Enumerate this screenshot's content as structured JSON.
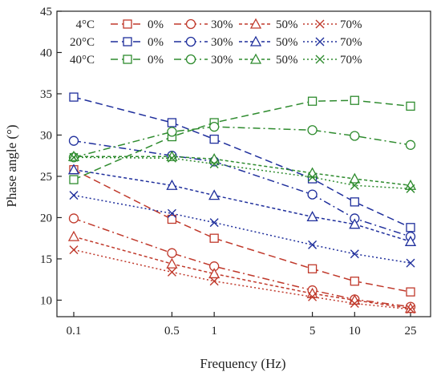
{
  "chart_data": {
    "type": "line",
    "xlabel": "Frequency (Hz)",
    "ylabel": "Phase angle (°)",
    "x_scale": "log",
    "x": [
      0.1,
      0.5,
      1,
      5,
      10,
      25
    ],
    "x_tick_labels": [
      "0.1",
      "0.5",
      "1",
      "5",
      "10",
      "25"
    ],
    "ylim": [
      8,
      45
    ],
    "y_ticks": [
      10,
      15,
      20,
      25,
      30,
      35,
      40,
      45
    ],
    "y_tick_labels": [
      "10",
      "15",
      "20",
      "25",
      "30",
      "35",
      "40",
      "45"
    ],
    "grid": false,
    "legend_position": "top-left",
    "legend_rows": [
      {
        "label": "4°C",
        "color": "#c0392b"
      },
      {
        "label": "20°C",
        "color": "#1f2f9c"
      },
      {
        "label": "40°C",
        "color": "#2e8b2e"
      }
    ],
    "legend_columns": [
      {
        "label": "0%",
        "marker": "square",
        "dash": "long-dash"
      },
      {
        "label": "30%",
        "marker": "circle",
        "dash": "dash-dot"
      },
      {
        "label": "50%",
        "marker": "triangle",
        "dash": "short-dash"
      },
      {
        "label": "70%",
        "marker": "x",
        "dash": "dot"
      }
    ],
    "series": [
      {
        "temperature": "4°C",
        "content": "0%",
        "values": [
          25.8,
          19.8,
          17.5,
          13.8,
          12.3,
          11.0
        ]
      },
      {
        "temperature": "4°C",
        "content": "30%",
        "values": [
          19.9,
          15.7,
          14.1,
          11.2,
          10.1,
          9.2
        ]
      },
      {
        "temperature": "4°C",
        "content": "50%",
        "values": [
          17.7,
          14.4,
          13.2,
          10.8,
          10.0,
          9.0
        ]
      },
      {
        "temperature": "4°C",
        "content": "70%",
        "values": [
          16.1,
          13.4,
          12.3,
          10.4,
          9.6,
          8.9
        ]
      },
      {
        "temperature": "20°C",
        "content": "0%",
        "values": [
          34.6,
          31.5,
          29.5,
          24.7,
          21.9,
          18.8
        ]
      },
      {
        "temperature": "20°C",
        "content": "30%",
        "values": [
          29.3,
          27.5,
          26.8,
          22.8,
          19.9,
          17.7
        ]
      },
      {
        "temperature": "20°C",
        "content": "50%",
        "values": [
          25.8,
          23.9,
          22.7,
          20.1,
          19.2,
          17.1
        ]
      },
      {
        "temperature": "20°C",
        "content": "70%",
        "values": [
          22.7,
          20.5,
          19.4,
          16.7,
          15.6,
          14.5
        ]
      },
      {
        "temperature": "40°C",
        "content": "0%",
        "values": [
          24.6,
          29.8,
          31.5,
          34.1,
          34.2,
          33.5
        ]
      },
      {
        "temperature": "40°C",
        "content": "30%",
        "values": [
          27.3,
          30.4,
          31.0,
          30.6,
          29.9,
          28.8
        ]
      },
      {
        "temperature": "40°C",
        "content": "50%",
        "values": [
          27.4,
          27.4,
          27.1,
          25.4,
          24.7,
          23.9
        ]
      },
      {
        "temperature": "40°C",
        "content": "70%",
        "values": [
          27.3,
          27.2,
          26.5,
          24.9,
          23.9,
          23.5
        ]
      }
    ]
  }
}
